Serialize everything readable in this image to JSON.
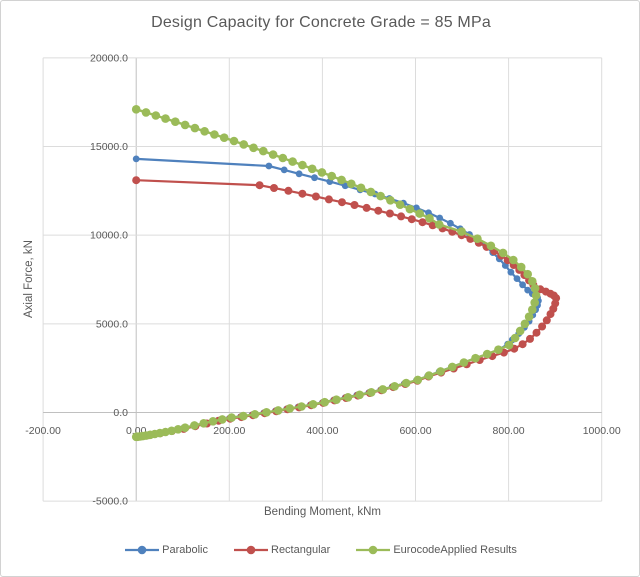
{
  "chart_data": {
    "type": "line",
    "title": "Design Capacity for Concrete Grade = 85 MPa",
    "xlabel": "Bending Moment, kNm",
    "ylabel": "Axial Force, kN",
    "grid": true,
    "legend_position": "bottom",
    "background_color": "#ffffff",
    "gridline_color": "#dcdcdc",
    "zero_axis_color": "#c0c0c0",
    "text_color": "#595959",
    "x_axis": {
      "min": -200,
      "max": 1000,
      "ticks": [
        -200,
        0,
        200,
        400,
        600,
        800,
        1000
      ],
      "tick_labels": [
        "-200.00",
        "0.00",
        "200.00",
        "400.00",
        "600.00",
        "800.00",
        "1000.00"
      ]
    },
    "y_axis": {
      "min": -5000,
      "max": 20000,
      "ticks": [
        -5000,
        0,
        5000,
        10000,
        15000,
        20000
      ],
      "tick_labels": [
        "-5000.0",
        "0.0",
        "5000.0",
        "10000.0",
        "15000.0",
        "20000.0"
      ]
    },
    "series": [
      {
        "name": "Parabolic",
        "color": "#4F81BD",
        "marker": "circle",
        "points": [
          [
            0,
            14300
          ],
          [
            285,
            13900
          ],
          [
            318,
            13680
          ],
          [
            350,
            13460
          ],
          [
            383,
            13240
          ],
          [
            416,
            13020
          ],
          [
            449,
            12790
          ],
          [
            481,
            12560
          ],
          [
            513,
            12320
          ],
          [
            544,
            12070
          ],
          [
            574,
            11810
          ],
          [
            602,
            11540
          ],
          [
            628,
            11260
          ],
          [
            652,
            10970
          ],
          [
            675,
            10670
          ],
          [
            696,
            10360
          ],
          [
            716,
            10040
          ],
          [
            734,
            9710
          ],
          [
            751,
            9370
          ],
          [
            766,
            9020
          ],
          [
            780,
            8660
          ],
          [
            793,
            8290
          ],
          [
            805,
            7910
          ],
          [
            818,
            7550
          ],
          [
            830,
            7200
          ],
          [
            841,
            6900
          ],
          [
            851,
            6700
          ],
          [
            858,
            6600
          ],
          [
            862,
            6480
          ],
          [
            864,
            6300
          ],
          [
            862,
            6050
          ],
          [
            858,
            5800
          ],
          [
            852,
            5500
          ],
          [
            844,
            5150
          ],
          [
            834,
            4800
          ],
          [
            822,
            4450
          ],
          [
            808,
            4100
          ],
          [
            798,
            3850
          ],
          [
            780,
            3560
          ],
          [
            755,
            3300
          ],
          [
            729,
            3060
          ],
          [
            703,
            2810
          ],
          [
            677,
            2560
          ],
          [
            651,
            2300
          ],
          [
            626,
            2050
          ],
          [
            602,
            1810
          ],
          [
            576,
            1630
          ],
          [
            550,
            1450
          ],
          [
            525,
            1270
          ],
          [
            500,
            1120
          ],
          [
            474,
            975
          ],
          [
            449,
            840
          ],
          [
            424,
            700
          ],
          [
            400,
            560
          ],
          [
            374,
            430
          ],
          [
            348,
            310
          ],
          [
            323,
            200
          ],
          [
            299,
            90
          ],
          [
            274,
            -20
          ],
          [
            249,
            -135
          ],
          [
            224,
            -240
          ],
          [
            200,
            -330
          ],
          [
            175,
            -450
          ],
          [
            150,
            -600
          ],
          [
            125,
            -750
          ],
          [
            100,
            -905
          ],
          [
            75,
            -1025
          ],
          [
            50,
            -1145
          ],
          [
            25,
            -1260
          ],
          [
            0,
            -1370
          ]
        ]
      },
      {
        "name": "Rectangular",
        "color": "#C0504D",
        "marker": "circle",
        "points": [
          [
            0,
            13100
          ],
          [
            265,
            12820
          ],
          [
            296,
            12660
          ],
          [
            327,
            12500
          ],
          [
            357,
            12340
          ],
          [
            386,
            12180
          ],
          [
            414,
            12020
          ],
          [
            442,
            11860
          ],
          [
            469,
            11700
          ],
          [
            495,
            11540
          ],
          [
            520,
            11380
          ],
          [
            545,
            11220
          ],
          [
            569,
            11060
          ],
          [
            592,
            10900
          ],
          [
            615,
            10730
          ],
          [
            637,
            10560
          ],
          [
            658,
            10380
          ],
          [
            679,
            10190
          ],
          [
            699,
            10000
          ],
          [
            718,
            9790
          ],
          [
            736,
            9570
          ],
          [
            753,
            9340
          ],
          [
            769,
            9100
          ],
          [
            784,
            8850
          ],
          [
            798,
            8590
          ],
          [
            811,
            8320
          ],
          [
            823,
            8040
          ],
          [
            834,
            7750
          ],
          [
            844,
            7450
          ],
          [
            853,
            7200
          ],
          [
            868,
            6950
          ],
          [
            880,
            6820
          ],
          [
            890,
            6700
          ],
          [
            897,
            6600
          ],
          [
            902,
            6450
          ],
          [
            900,
            6150
          ],
          [
            896,
            5850
          ],
          [
            890,
            5550
          ],
          [
            882,
            5200
          ],
          [
            872,
            4850
          ],
          [
            860,
            4500
          ],
          [
            846,
            4150
          ],
          [
            830,
            3850
          ],
          [
            812,
            3600
          ],
          [
            790,
            3380
          ],
          [
            765,
            3180
          ],
          [
            738,
            2960
          ],
          [
            710,
            2720
          ],
          [
            682,
            2480
          ],
          [
            655,
            2250
          ],
          [
            628,
            2030
          ],
          [
            604,
            1790
          ],
          [
            578,
            1610
          ],
          [
            552,
            1430
          ],
          [
            527,
            1250
          ],
          [
            502,
            1100
          ],
          [
            476,
            955
          ],
          [
            451,
            820
          ],
          [
            426,
            680
          ],
          [
            402,
            540
          ],
          [
            376,
            410
          ],
          [
            350,
            290
          ],
          [
            325,
            180
          ],
          [
            301,
            70
          ],
          [
            276,
            -40
          ],
          [
            251,
            -155
          ],
          [
            226,
            -260
          ],
          [
            202,
            -350
          ],
          [
            177,
            -470
          ],
          [
            152,
            -620
          ],
          [
            127,
            -770
          ],
          [
            102,
            -925
          ],
          [
            77,
            -1045
          ],
          [
            52,
            -1165
          ],
          [
            27,
            -1280
          ],
          [
            2,
            -1390
          ]
        ]
      },
      {
        "name": "EurocodeApplied Results",
        "color": "#9BBB59",
        "marker": "circle",
        "points": [
          [
            0,
            17100
          ],
          [
            21,
            16925
          ],
          [
            42,
            16750
          ],
          [
            63,
            16575
          ],
          [
            84,
            16400
          ],
          [
            105,
            16220
          ],
          [
            126,
            16040
          ],
          [
            147,
            15860
          ],
          [
            168,
            15680
          ],
          [
            189,
            15495
          ],
          [
            210,
            15310
          ],
          [
            231,
            15120
          ],
          [
            252,
            14930
          ],
          [
            273,
            14740
          ],
          [
            294,
            14545
          ],
          [
            315,
            14350
          ],
          [
            336,
            14150
          ],
          [
            357,
            13950
          ],
          [
            378,
            13745
          ],
          [
            399,
            13540
          ],
          [
            420,
            13330
          ],
          [
            441,
            13115
          ],
          [
            462,
            12895
          ],
          [
            483,
            12670
          ],
          [
            504,
            12440
          ],
          [
            525,
            12205
          ],
          [
            546,
            11965
          ],
          [
            567,
            11720
          ],
          [
            588,
            11470
          ],
          [
            609,
            11215
          ],
          [
            630,
            10950
          ],
          [
            651,
            10600
          ],
          [
            699,
            10200
          ],
          [
            733,
            9800
          ],
          [
            762,
            9400
          ],
          [
            788,
            9000
          ],
          [
            810,
            8600
          ],
          [
            827,
            8200
          ],
          [
            841,
            7800
          ],
          [
            851,
            7400
          ],
          [
            857,
            7000
          ],
          [
            859,
            6600
          ],
          [
            856,
            6200
          ],
          [
            851,
            5800
          ],
          [
            844,
            5400
          ],
          [
            835,
            5000
          ],
          [
            825,
            4600
          ],
          [
            814,
            4200
          ],
          [
            801,
            3800
          ],
          [
            778,
            3540
          ],
          [
            754,
            3300
          ],
          [
            729,
            3060
          ],
          [
            704,
            2820
          ],
          [
            679,
            2570
          ],
          [
            654,
            2320
          ],
          [
            629,
            2080
          ],
          [
            605,
            1840
          ],
          [
            580,
            1660
          ],
          [
            555,
            1480
          ],
          [
            530,
            1300
          ],
          [
            505,
            1140
          ],
          [
            480,
            1000
          ],
          [
            455,
            860
          ],
          [
            430,
            720
          ],
          [
            405,
            580
          ],
          [
            380,
            460
          ],
          [
            355,
            340
          ],
          [
            330,
            230
          ],
          [
            305,
            120
          ],
          [
            280,
            10
          ],
          [
            255,
            -100
          ],
          [
            230,
            -205
          ],
          [
            205,
            -290
          ],
          [
            185,
            -390
          ],
          [
            165,
            -495
          ],
          [
            145,
            -610
          ],
          [
            125,
            -730
          ],
          [
            105,
            -860
          ],
          [
            90,
            -950
          ],
          [
            76,
            -1030
          ],
          [
            63,
            -1100
          ],
          [
            51,
            -1160
          ],
          [
            40,
            -1215
          ],
          [
            30,
            -1260
          ],
          [
            21,
            -1300
          ],
          [
            14,
            -1330
          ],
          [
            8,
            -1350
          ],
          [
            3,
            -1362
          ],
          [
            0,
            -1370
          ]
        ]
      }
    ]
  }
}
